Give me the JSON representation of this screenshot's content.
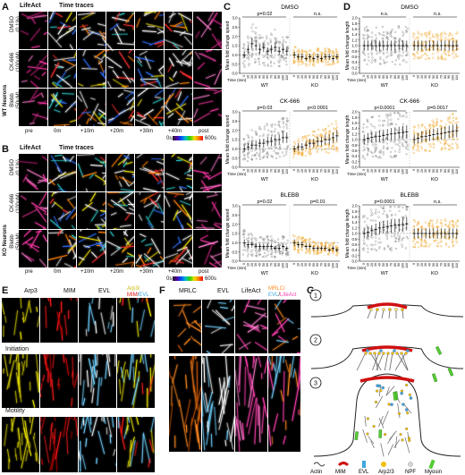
{
  "panelA": {
    "letter": "A",
    "col_lifeact": "LifeAct",
    "col_timetraces": "Time traces",
    "row_group": "WT Neurons",
    "rows": [
      [
        "DMSO",
        "(0.1%)"
      ],
      [
        "CK-666",
        "(100µM)"
      ],
      [
        "Blebb",
        "(50µM)"
      ]
    ],
    "timepoints": [
      "pre",
      "0m",
      "+10m",
      "+20m",
      "+30m",
      "+40m",
      "post"
    ],
    "colorbar_min": "0s",
    "colorbar_max": "600s"
  },
  "panelB": {
    "letter": "B",
    "col_lifeact": "LifeAct",
    "col_timetraces": "Time traces",
    "row_group": "KO Neurons",
    "rows": [
      [
        "DMSO",
        "(0.1%)"
      ],
      [
        "CK-666",
        "(100µM)"
      ],
      [
        "Blebb",
        "(50µM)"
      ]
    ],
    "timepoints": [
      "pre",
      "0m",
      "+10m",
      "+20m",
      "+30m",
      "+40m",
      "post"
    ],
    "colorbar_min": "0s",
    "colorbar_max": "600s"
  },
  "panelC": {
    "letter": "C",
    "ylabel": "Mean fold change speed",
    "xlabel": "Time (min)",
    "groups": [
      "WT",
      "KO"
    ],
    "ticks": [
      "0",
      "10",
      "20",
      "30",
      "40",
      "50",
      "60",
      "70",
      "80",
      "90",
      "100",
      "110"
    ],
    "plots": [
      {
        "title": "DMSO",
        "p_wt": "p=0.02",
        "p_ko": "n.s."
      },
      {
        "title": "CK-666",
        "p_wt": "p=0.03",
        "p_ko": "p<0.0001"
      },
      {
        "title": "BLEBB",
        "p_wt": "p=0.02",
        "p_ko": "p=0.01"
      }
    ]
  },
  "panelD": {
    "letter": "D",
    "ylabel": "Mean fold change length",
    "xlabel": "Time (min)",
    "groups": [
      "WT",
      "KO"
    ],
    "ticks": [
      "0",
      "10",
      "20",
      "30",
      "40",
      "50",
      "60",
      "70",
      "80",
      "90",
      "100",
      "110"
    ],
    "plots": [
      {
        "title": "DMSO",
        "p_wt": "n.s.",
        "p_ko": "n.s."
      },
      {
        "title": "CK-666",
        "p_wt": "p<0.0001",
        "p_ko": "p=0.0017"
      },
      {
        "title": "BLEBB",
        "p_wt": "p=0.0001",
        "p_ko": "n.s."
      }
    ]
  },
  "chart_data": [
    {
      "type": "scatter",
      "title": "DMSO",
      "ylabel": "Mean fold change speed",
      "xlabel": "Time (min)",
      "ylim": [
        0,
        3.0
      ],
      "categories": [
        "0",
        "10",
        "20",
        "30",
        "40",
        "50",
        "60",
        "70",
        "80",
        "90",
        "100",
        "110"
      ],
      "series": [
        {
          "name": "WT",
          "values": [
            1.0,
            1.3,
            1.6,
            1.5,
            1.3,
            1.4,
            1.2,
            1.3,
            1.4,
            1.2,
            1.3,
            1.2
          ]
        },
        {
          "name": "KO",
          "values": [
            1.0,
            0.9,
            0.9,
            0.8,
            0.9,
            0.8,
            0.9,
            0.8,
            0.9,
            0.9,
            0.8,
            0.9
          ]
        }
      ]
    },
    {
      "type": "scatter",
      "title": "CK-666",
      "ylabel": "Mean fold change speed",
      "xlabel": "Time (min)",
      "ylim": [
        0,
        3.0
      ],
      "categories": [
        "0",
        "10",
        "20",
        "30",
        "40",
        "50",
        "60",
        "70",
        "80",
        "90",
        "100",
        "110"
      ],
      "series": [
        {
          "name": "WT",
          "values": [
            1.0,
            1.1,
            1.2,
            1.2,
            1.3,
            1.3,
            1.4,
            1.4,
            1.5,
            1.5,
            1.6,
            1.6
          ]
        },
        {
          "name": "KO",
          "values": [
            1.0,
            1.1,
            1.1,
            1.2,
            1.3,
            1.3,
            1.4,
            1.4,
            1.5,
            1.5,
            1.6,
            1.7
          ]
        }
      ]
    },
    {
      "type": "scatter",
      "title": "BLEBB",
      "ylabel": "Mean fold change speed",
      "xlabel": "Time (min)",
      "ylim": [
        0,
        3.0
      ],
      "categories": [
        "0",
        "10",
        "20",
        "30",
        "40",
        "50",
        "60",
        "70",
        "80",
        "90",
        "100",
        "110"
      ],
      "series": [
        {
          "name": "WT",
          "values": [
            1.0,
            0.9,
            0.9,
            0.8,
            0.8,
            0.8,
            0.8,
            0.8,
            0.7,
            0.7,
            0.8,
            0.7
          ]
        },
        {
          "name": "KO",
          "values": [
            1.0,
            0.9,
            0.9,
            0.8,
            0.8,
            0.7,
            0.7,
            0.7,
            0.7,
            0.6,
            0.7,
            0.6
          ]
        }
      ]
    },
    {
      "type": "scatter",
      "title": "DMSO",
      "ylabel": "Mean fold change length",
      "xlabel": "Time (min)",
      "ylim": [
        0,
        2.0
      ],
      "categories": [
        "0",
        "10",
        "20",
        "30",
        "40",
        "50",
        "60",
        "70",
        "80",
        "90",
        "100",
        "110"
      ],
      "series": [
        {
          "name": "WT",
          "values": [
            1.0,
            1.0,
            1.0,
            1.0,
            1.0,
            1.0,
            1.0,
            1.0,
            1.0,
            1.0,
            1.0,
            1.0
          ]
        },
        {
          "name": "KO",
          "values": [
            1.0,
            1.0,
            1.0,
            1.0,
            1.0,
            1.0,
            1.0,
            1.0,
            1.0,
            1.0,
            1.0,
            1.0
          ]
        }
      ]
    },
    {
      "type": "scatter",
      "title": "CK-666",
      "ylabel": "Mean fold change length",
      "xlabel": "Time (min)",
      "ylim": [
        0,
        2.0
      ],
      "categories": [
        "0",
        "10",
        "20",
        "30",
        "40",
        "50",
        "60",
        "70",
        "80",
        "90",
        "100",
        "110"
      ],
      "series": [
        {
          "name": "WT",
          "values": [
            1.0,
            1.05,
            1.08,
            1.1,
            1.12,
            1.15,
            1.17,
            1.2,
            1.22,
            1.24,
            1.26,
            1.28
          ]
        },
        {
          "name": "KO",
          "values": [
            1.0,
            1.05,
            1.1,
            1.12,
            1.15,
            1.18,
            1.2,
            1.22,
            1.25,
            1.27,
            1.3,
            1.32
          ]
        }
      ]
    },
    {
      "type": "scatter",
      "title": "BLEBB",
      "ylabel": "Mean fold change length",
      "xlabel": "Time (min)",
      "ylim": [
        0,
        2.0
      ],
      "categories": [
        "0",
        "10",
        "20",
        "30",
        "40",
        "50",
        "60",
        "70",
        "80",
        "90",
        "100",
        "110"
      ],
      "series": [
        {
          "name": "WT",
          "values": [
            1.0,
            1.05,
            1.1,
            1.15,
            1.2,
            1.22,
            1.25,
            1.27,
            1.3,
            1.3,
            1.32,
            1.35
          ]
        },
        {
          "name": "KO",
          "values": [
            1.0,
            1.0,
            1.0,
            1.0,
            1.0,
            1.0,
            1.0,
            1.0,
            1.0,
            1.0,
            1.0,
            1.0
          ]
        }
      ]
    }
  ],
  "panelE": {
    "letter": "E",
    "channels": [
      "Arp3",
      "MIM",
      "EVL"
    ],
    "merge": [
      "Arp3/",
      "MIM",
      "/",
      "EVL"
    ],
    "row_initiation": "Initiation",
    "row_motility": "Motility"
  },
  "panelF": {
    "letter": "F",
    "channels": [
      "MRLC",
      "EVL",
      "LifeAct"
    ],
    "merge": [
      "MRLC/",
      "EVL",
      "/",
      "LifeAct"
    ]
  },
  "panelG": {
    "letter": "G",
    "steps": [
      "1",
      "2",
      "3"
    ],
    "legend": [
      "Actin",
      "MIM",
      "EVL",
      "Arp2/3",
      "NPF",
      "Myosin"
    ]
  },
  "colors": {
    "wt": "#8a8a8a",
    "ko": "#f0a830",
    "arp3": "#e8e000",
    "mim": "#e01010",
    "evl": "#60c8ff",
    "mrlc": "#ff8a20",
    "lifeact": "#ff40b0",
    "myosin": "#55cc33"
  }
}
